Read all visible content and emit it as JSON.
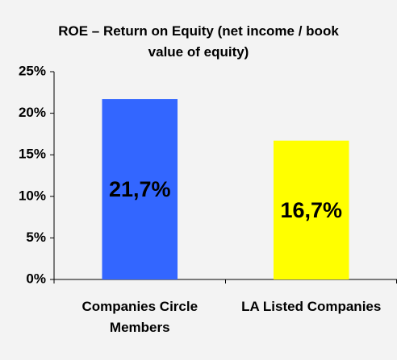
{
  "chart_data": {
    "type": "bar",
    "title": "ROE – Return on Equity (net income / book value of equity)",
    "categories": [
      "Companies Circle Members",
      "LA Listed Companies"
    ],
    "values": [
      21.7,
      16.7
    ],
    "value_labels": [
      "21,7%",
      "16,7%"
    ],
    "colors": [
      "#3366ff",
      "#ffff00"
    ],
    "ylim": [
      0,
      25
    ],
    "yticks": [
      {
        "value": 0,
        "label": "0%"
      },
      {
        "value": 5,
        "label": "5%"
      },
      {
        "value": 10,
        "label": "10%"
      },
      {
        "value": 15,
        "label": "15%"
      },
      {
        "value": 20,
        "label": "20%"
      },
      {
        "value": 25,
        "label": "25%"
      }
    ],
    "grid": false
  }
}
